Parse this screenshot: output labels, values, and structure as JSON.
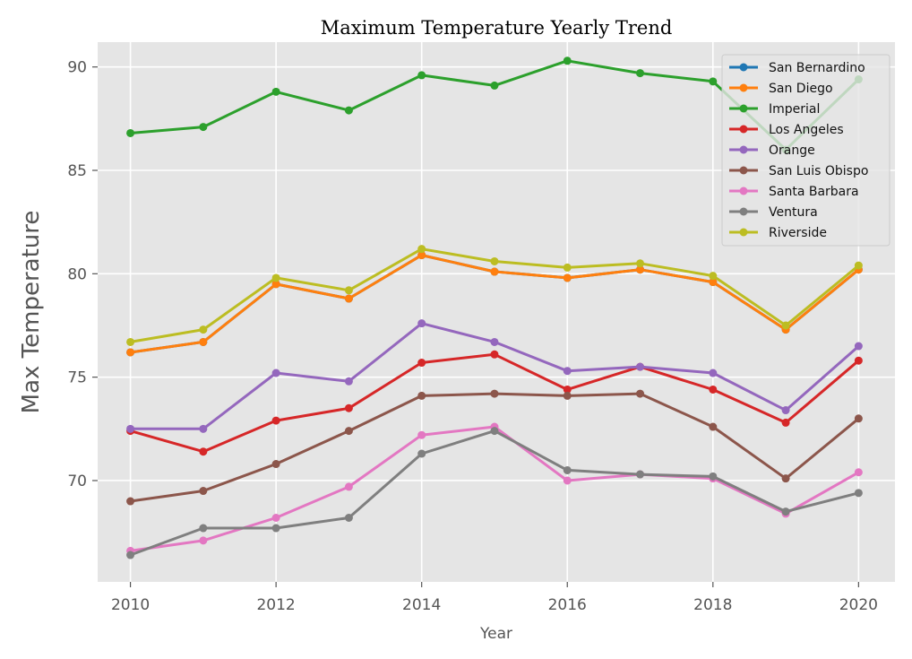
{
  "chart_data": {
    "type": "line",
    "title": "Maximum Temperature Yearly Trend",
    "xlabel": "Year",
    "ylabel": "Max Temperature",
    "x": [
      2010,
      2011,
      2012,
      2013,
      2014,
      2015,
      2016,
      2017,
      2018,
      2019,
      2020
    ],
    "xticks": [
      "2010",
      "2012",
      "2014",
      "2016",
      "2018",
      "2020"
    ],
    "yticks": [
      "70",
      "75",
      "80",
      "85",
      "90"
    ],
    "xlim": [
      2009.55,
      2020.5
    ],
    "ylim": [
      65.1,
      91.2
    ],
    "grid": true,
    "legend_position": "top-right",
    "series": [
      {
        "name": "San Bernardino",
        "color": "#1f77b4",
        "values": [
          76.2,
          76.7,
          79.5,
          78.8,
          80.9,
          80.1,
          79.8,
          80.2,
          79.6,
          77.3,
          80.2
        ]
      },
      {
        "name": "San Diego",
        "color": "#ff7f0e",
        "values": [
          76.2,
          76.7,
          79.5,
          78.8,
          80.9,
          80.1,
          79.8,
          80.2,
          79.6,
          77.3,
          80.2
        ]
      },
      {
        "name": "Imperial",
        "color": "#2ca02c",
        "values": [
          86.8,
          87.1,
          88.8,
          87.9,
          89.6,
          89.1,
          90.3,
          89.7,
          89.3,
          86.0,
          89.4
        ]
      },
      {
        "name": "Los Angeles",
        "color": "#d62728",
        "values": [
          72.4,
          71.4,
          72.9,
          73.5,
          75.7,
          76.1,
          74.4,
          75.5,
          74.4,
          72.8,
          75.8
        ]
      },
      {
        "name": "Orange",
        "color": "#9467bd",
        "values": [
          72.5,
          72.5,
          75.2,
          74.8,
          77.6,
          76.7,
          75.3,
          75.5,
          75.2,
          73.4,
          76.5
        ]
      },
      {
        "name": "San Luis Obispo",
        "color": "#8c564b",
        "values": [
          69.0,
          69.5,
          70.8,
          72.4,
          74.1,
          74.2,
          74.1,
          74.2,
          72.6,
          70.1,
          73.0
        ]
      },
      {
        "name": "Santa Barbara",
        "color": "#e377c2",
        "values": [
          66.6,
          67.1,
          68.2,
          69.7,
          72.2,
          72.6,
          70.0,
          70.3,
          70.1,
          68.4,
          70.4
        ]
      },
      {
        "name": "Ventura",
        "color": "#7f7f7f",
        "values": [
          66.4,
          67.7,
          67.7,
          68.2,
          71.3,
          72.4,
          70.5,
          70.3,
          70.2,
          68.5,
          69.4
        ]
      },
      {
        "name": "Riverside",
        "color": "#bcbd22",
        "values": [
          76.7,
          77.3,
          79.8,
          79.2,
          81.2,
          80.6,
          80.3,
          80.5,
          79.9,
          77.5,
          80.4
        ]
      }
    ]
  }
}
